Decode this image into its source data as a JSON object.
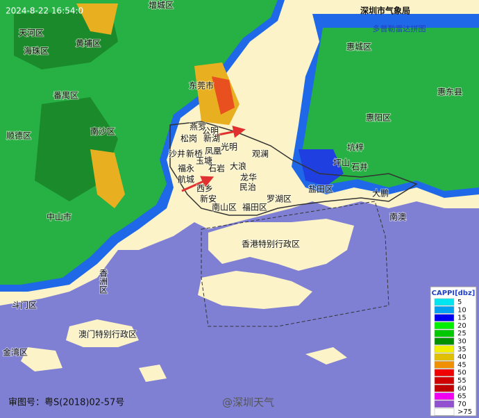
{
  "header": {
    "timestamp": "2024-8-22 16:54:0",
    "agency": "深圳市气象局",
    "subtitle": "多普勒雷达拼图"
  },
  "places": [
    {
      "label": "增城区"
    },
    {
      "label": "天河区"
    },
    {
      "label": "海珠区"
    },
    {
      "label": "黄埔区"
    },
    {
      "label": "番禺区"
    },
    {
      "label": "东莞市"
    },
    {
      "label": "惠城区"
    },
    {
      "label": "惠东县"
    },
    {
      "label": "惠阳区"
    },
    {
      "label": "顺德区"
    },
    {
      "label": "南沙区"
    },
    {
      "label": "中山市"
    },
    {
      "label": "斗门区"
    },
    {
      "label": "澳门特别行政区"
    },
    {
      "label": "金湾区"
    },
    {
      "label": "香港特别行政区"
    },
    {
      "label": "燕罗"
    },
    {
      "label": "公明"
    },
    {
      "label": "松岗"
    },
    {
      "label": "光明"
    },
    {
      "label": "新湖"
    },
    {
      "label": "沙井"
    },
    {
      "label": "新桥"
    },
    {
      "label": "凤凰"
    },
    {
      "label": "玉塘"
    },
    {
      "label": "福永"
    },
    {
      "label": "石岩"
    },
    {
      "label": "航城"
    },
    {
      "label": "西乡"
    },
    {
      "label": "新安"
    },
    {
      "label": "观澜"
    },
    {
      "label": "大浪"
    },
    {
      "label": "龙华"
    },
    {
      "label": "民治"
    },
    {
      "label": "南山区"
    },
    {
      "label": "福田区"
    },
    {
      "label": "罗湖区"
    },
    {
      "label": "盐田区"
    },
    {
      "label": "坪山"
    },
    {
      "label": "坑梓"
    },
    {
      "label": "石井"
    },
    {
      "label": "大鹏"
    },
    {
      "label": "南澳"
    },
    {
      "label": "香洲区"
    }
  ],
  "legend": {
    "title": "CAPPI[dbz]",
    "items": [
      {
        "label": 5,
        "color": "#00e5f0"
      },
      {
        "label": 10,
        "color": "#00a0f0"
      },
      {
        "label": 15,
        "color": "#0000f0"
      },
      {
        "label": 20,
        "color": "#00f000"
      },
      {
        "label": 25,
        "color": "#00c800"
      },
      {
        "label": 30,
        "color": "#009000"
      },
      {
        "label": 35,
        "color": "#f0f000"
      },
      {
        "label": 40,
        "color": "#e0c000"
      },
      {
        "label": 45,
        "color": "#f09000"
      },
      {
        "label": 50,
        "color": "#f00000"
      },
      {
        "label": 55,
        "color": "#d00000"
      },
      {
        "label": 60,
        "color": "#c00000"
      },
      {
        "label": 65,
        "color": "#f000f0"
      },
      {
        "label": 70,
        "color": "#9050d0"
      },
      {
        "label": ">75",
        "color": "#ffffff"
      }
    ]
  },
  "footer": {
    "map_number": "审图号：粤S(2018)02-57号",
    "watermark": "@深圳天气"
  }
}
